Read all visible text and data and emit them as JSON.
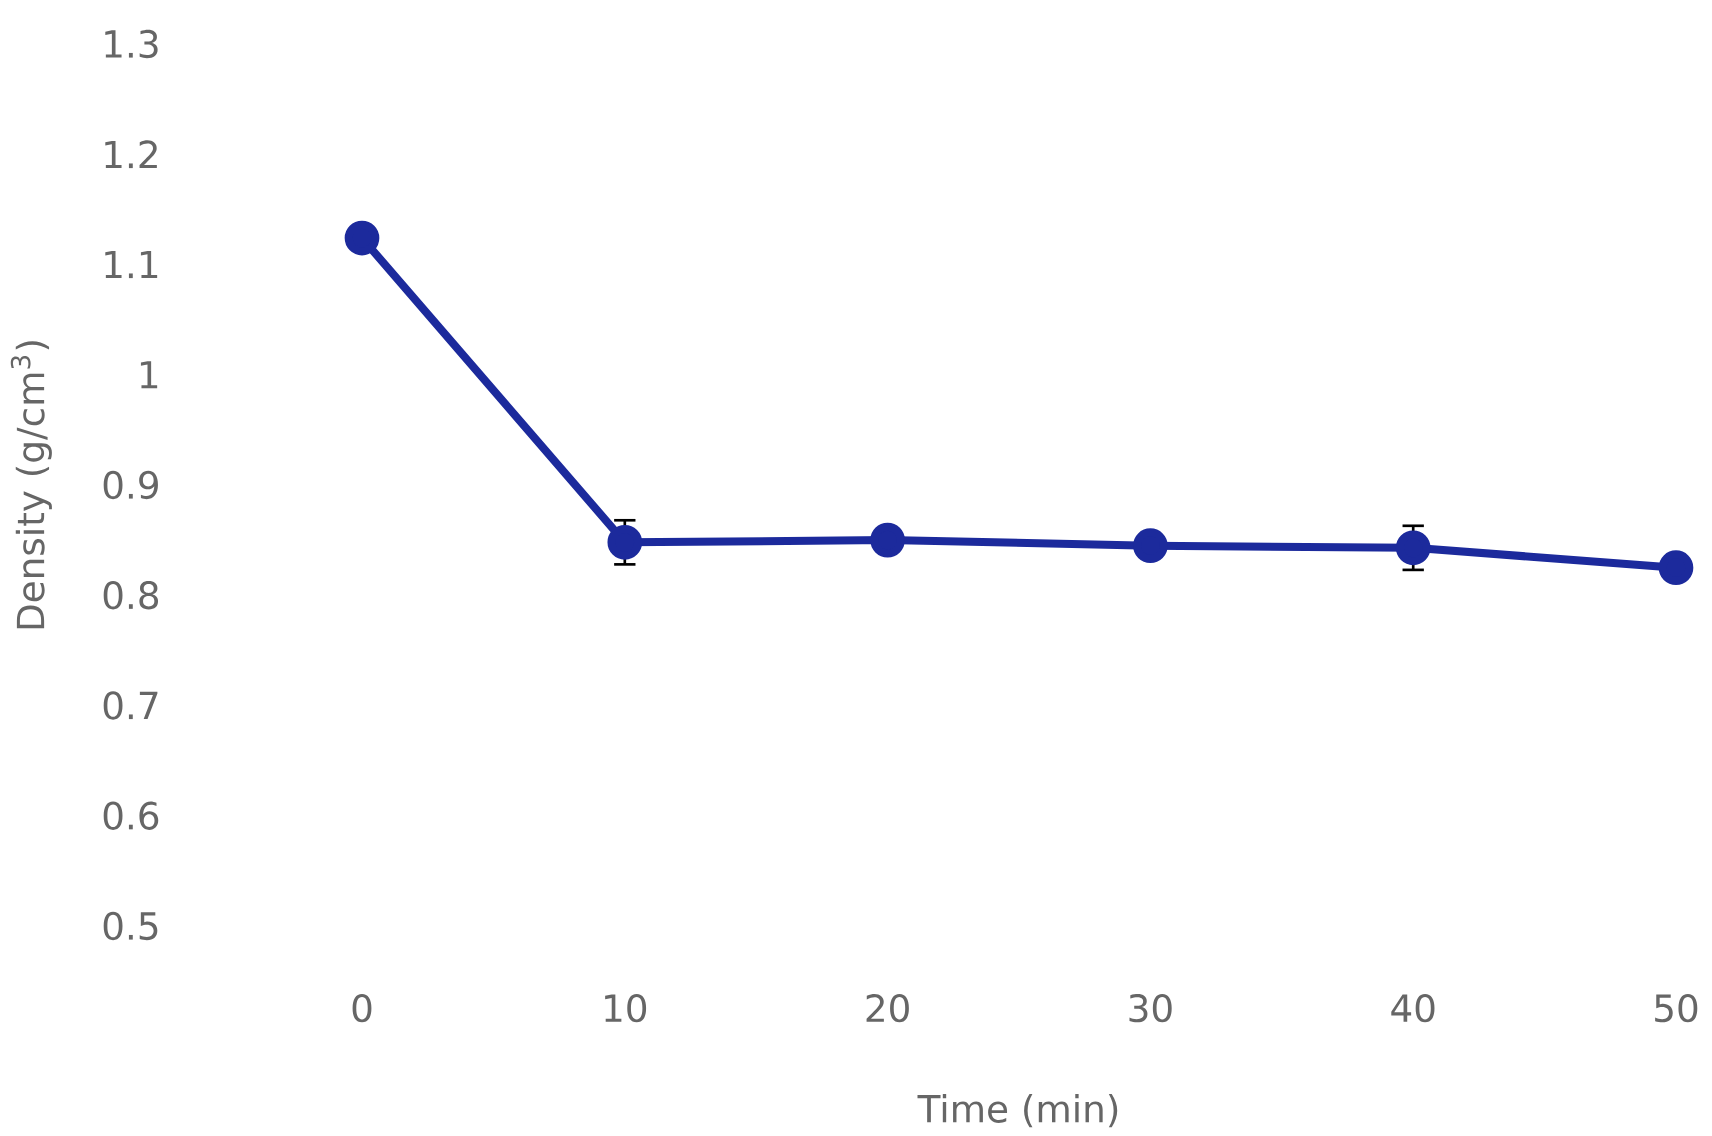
{
  "chart_data": {
    "type": "line",
    "xlabel": "Time (min)",
    "ylabel": "Density (g/cm$^{3}$)",
    "x": [
      0,
      10,
      20,
      30,
      40,
      50
    ],
    "series": [
      {
        "color": "#1c2a9c",
        "values": [
          1.124,
          0.848,
          0.85,
          0.845,
          0.843,
          0.825
        ],
        "errors": [
          null,
          0.02,
          null,
          null,
          0.02,
          null
        ]
      }
    ],
    "xlim": [
      0,
      50
    ],
    "ylim": [
      0.5,
      1.3
    ],
    "xticks": [
      0,
      10,
      20,
      30,
      40,
      50
    ],
    "yticks": [
      0.5,
      0.6,
      0.7,
      0.8,
      0.9,
      1,
      1.1,
      1.2,
      1.3
    ],
    "grid": false,
    "marker": "circle",
    "line_style": "solid"
  }
}
